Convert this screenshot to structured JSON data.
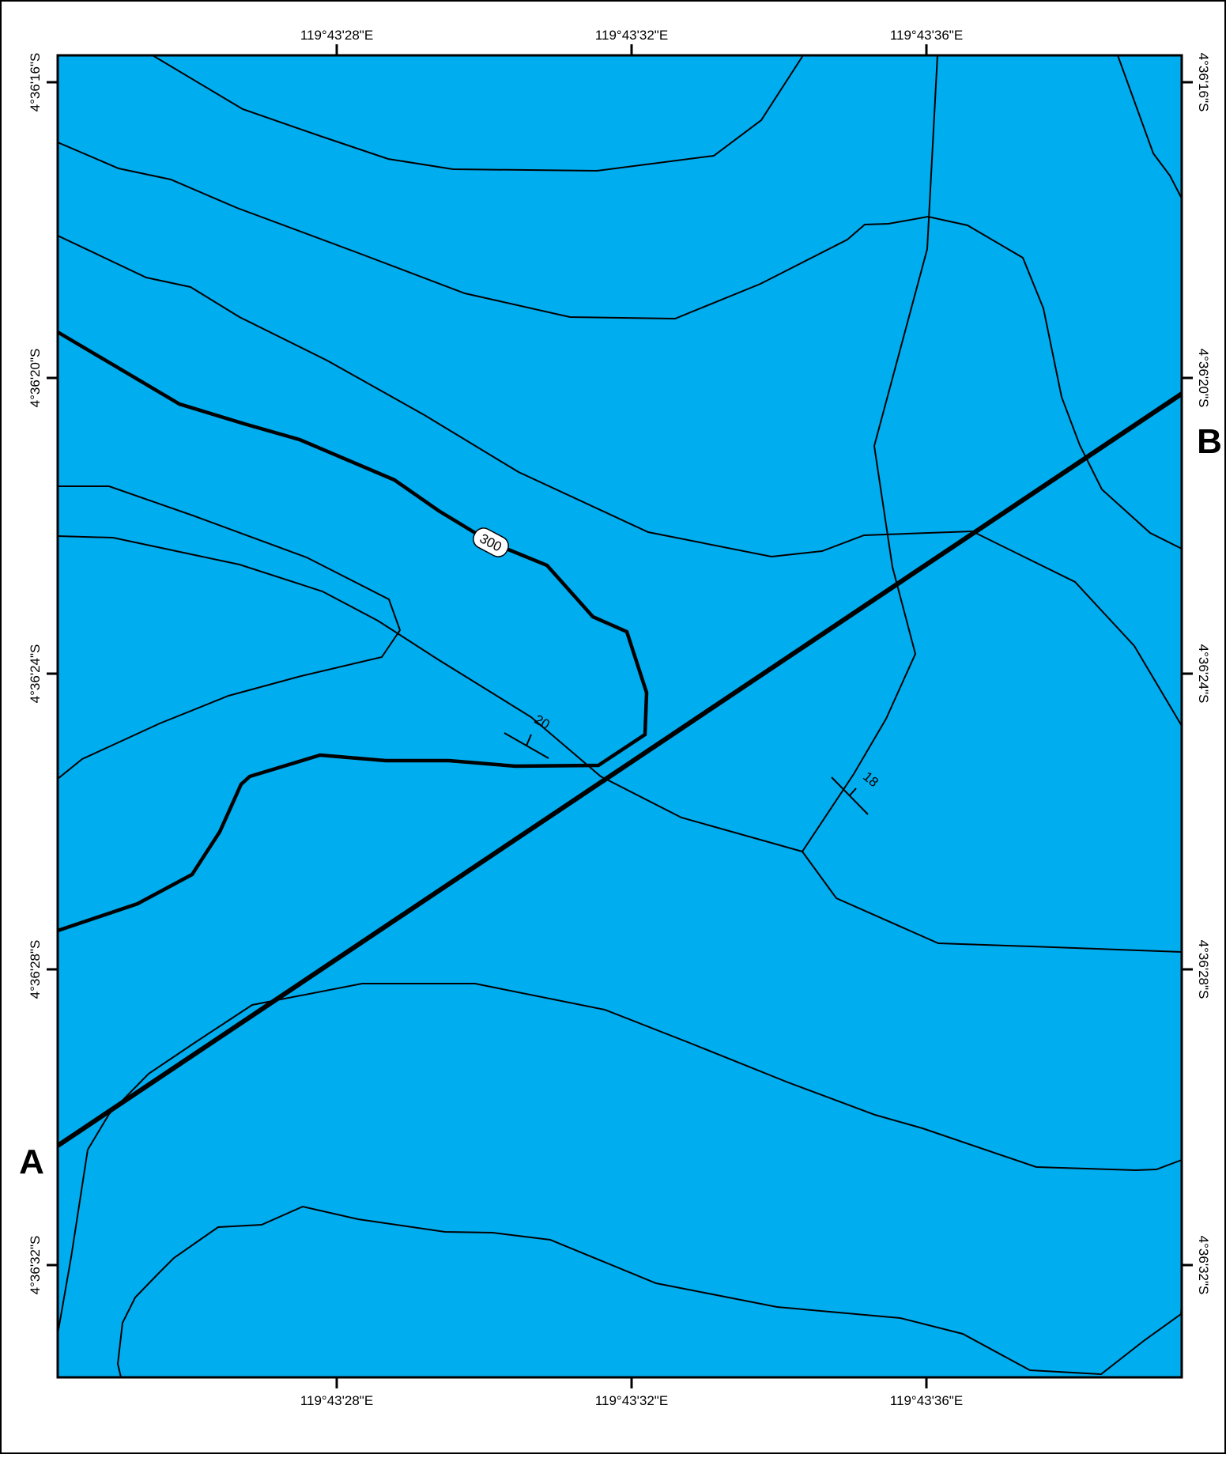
{
  "map": {
    "water_color": "#00adef",
    "line_color": "#000000",
    "frame_color": "#000000"
  },
  "graticule": {
    "longitude_labels": [
      "119°43'28\"E",
      "119°43'32\"E",
      "119°43'36\"E"
    ],
    "latitude_labels": [
      "4°36'16\"S",
      "4°36'20\"S",
      "4°36'24\"S",
      "4°36'28\"S",
      "4°36'32\"S"
    ]
  },
  "section_line": {
    "start_label": "A",
    "end_label": "B"
  },
  "contour_labels": {
    "index_contour": "300"
  },
  "dip_labels": {
    "dip_1": "20",
    "dip_2": "18"
  }
}
